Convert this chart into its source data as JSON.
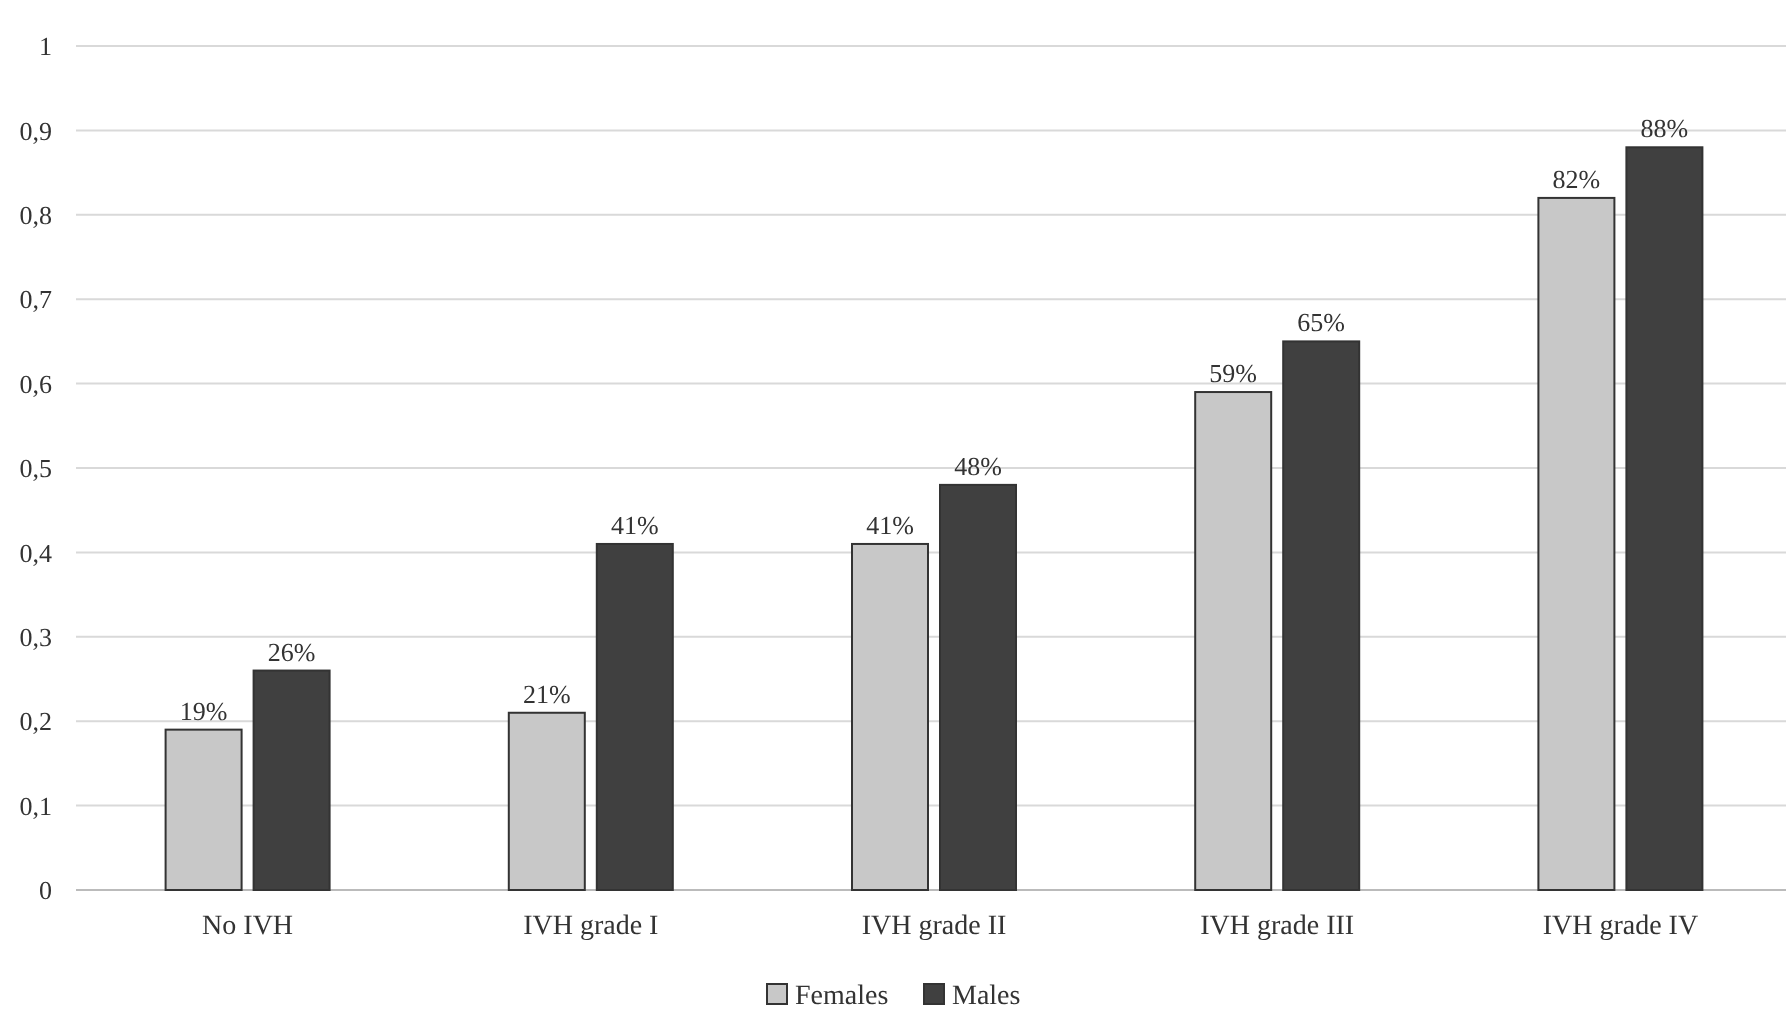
{
  "chart_data": {
    "type": "bar",
    "categories": [
      "No IVH",
      "IVH grade I",
      "IVH grade II",
      "IVH grade III",
      "IVH grade IV"
    ],
    "series": [
      {
        "name": "Females",
        "color": "#c8c8c8",
        "values": [
          0.19,
          0.21,
          0.41,
          0.59,
          0.82
        ],
        "value_labels": [
          "19%",
          "21%",
          "41%",
          "59%",
          "82%"
        ]
      },
      {
        "name": "Males",
        "color": "#404040",
        "values": [
          0.26,
          0.41,
          0.48,
          0.65,
          0.88
        ],
        "value_labels": [
          "26%",
          "41%",
          "48%",
          "65%",
          "88%"
        ]
      }
    ],
    "ylim": [
      0,
      1
    ],
    "yticks": [
      0,
      {
        "value": 0.1,
        "label": "0,1"
      },
      {
        "value": 0.2,
        "label": "0,2"
      },
      {
        "value": 0.3,
        "label": "0,3"
      },
      {
        "value": 0.4,
        "label": "0,4"
      },
      {
        "value": 0.5,
        "label": "0,5"
      },
      {
        "value": 0.6,
        "label": "0,6"
      },
      {
        "value": 0.7,
        "label": "0,7"
      },
      {
        "value": 0.8,
        "label": "0,8"
      },
      {
        "value": 0.9,
        "label": "0,9"
      },
      1
    ],
    "grid": "y",
    "legend": "bottom"
  }
}
